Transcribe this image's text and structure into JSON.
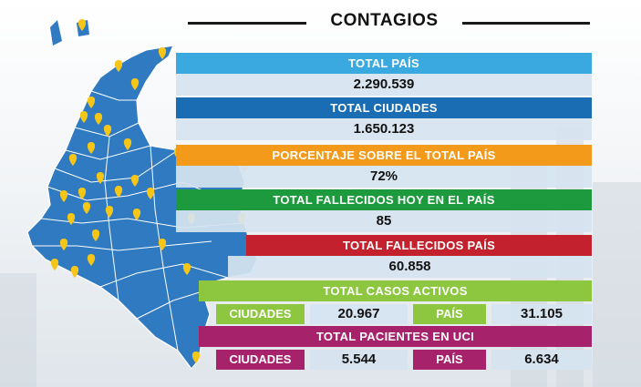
{
  "header": {
    "title": "CONTAGIOS"
  },
  "stats": {
    "total_pais": {
      "label": "TOTAL PAÍS",
      "value": "2.290.539"
    },
    "total_ciudades": {
      "label": "TOTAL CIUDADES",
      "value": "1.650.123"
    },
    "porcentaje": {
      "label": "PORCENTAJE SOBRE EL TOTAL PAÍS",
      "value": "72%"
    },
    "fallecidos_hoy": {
      "label": "TOTAL FALLECIDOS HOY EN EL PAÍS",
      "value": "85"
    },
    "fallecidos_pais": {
      "label": "TOTAL FALLECIDOS PAÍS",
      "value": "60.858"
    },
    "casos_activos": {
      "label": "TOTAL CASOS ACTIVOS",
      "ciudades_label": "CIUDADES",
      "ciudades_value": "20.967",
      "pais_label": "PAÍS",
      "pais_value": "31.105"
    },
    "uci": {
      "label": "TOTAL PACIENTES EN UCI",
      "ciudades_label": "CIUDADES",
      "ciudades_value": "5.544",
      "pais_label": "PAÍS",
      "pais_value": "6.634"
    }
  },
  "colors": {
    "sky": "#3aa9e0",
    "blue": "#1b6db3",
    "orange": "#f39a1b",
    "green": "#1d9a3e",
    "red": "#c3212d",
    "lime": "#8dc63f",
    "magenta": "#a6226b",
    "map": "#2f7ac0",
    "pin": "#f5c518"
  },
  "map": {
    "icon": "colombia-map-icon",
    "pin_icon": "location-pin-icon"
  }
}
